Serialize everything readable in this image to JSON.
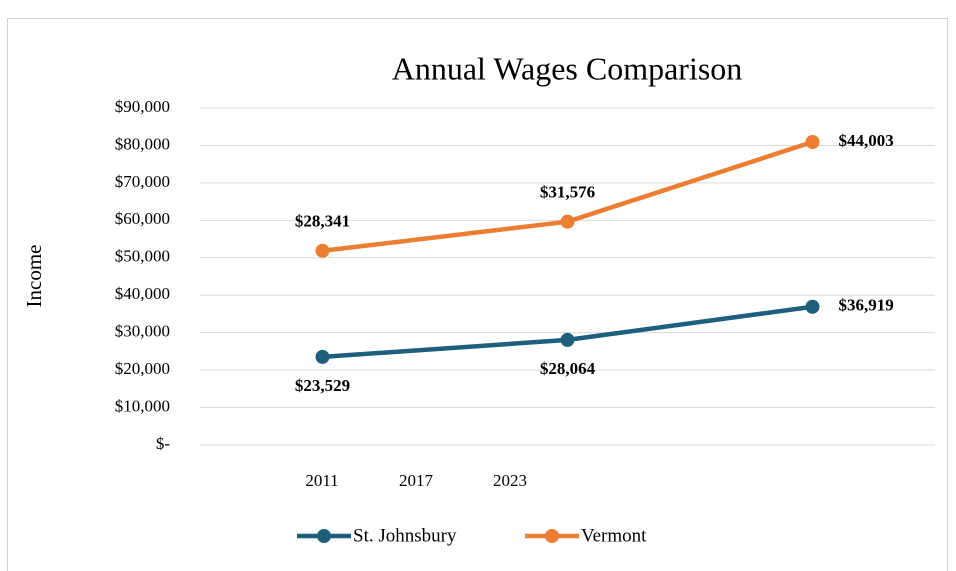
{
  "chart_data": {
    "type": "line",
    "stacked": true,
    "title": "Annual Wages Comparison",
    "y_label": "Income",
    "categories": [
      "2011",
      "2017",
      "2023"
    ],
    "series": [
      {
        "name": "St. Johnsbury",
        "color": "#1f5f7e",
        "values": [
          23529,
          28064,
          36919
        ],
        "value_labels": [
          "$23,529",
          "$28,064",
          "$36,919"
        ]
      },
      {
        "name": "Vermont",
        "color": "#ed7d31",
        "values": [
          28341,
          31576,
          44003
        ],
        "value_labels": [
          "$28,341",
          "$31,576",
          "$44,003"
        ]
      }
    ],
    "ylim": [
      0,
      90000
    ],
    "yticks": [
      {
        "value": 0,
        "label": "$-"
      },
      {
        "value": 10000,
        "label": "$10,000"
      },
      {
        "value": 20000,
        "label": "$20,000"
      },
      {
        "value": 30000,
        "label": "$30,000"
      },
      {
        "value": 40000,
        "label": "$40,000"
      },
      {
        "value": 50000,
        "label": "$50,000"
      },
      {
        "value": 60000,
        "label": "$60,000"
      },
      {
        "value": 70000,
        "label": "$70,000"
      },
      {
        "value": 80000,
        "label": "$80,000"
      },
      {
        "value": 90000,
        "label": "$90,000"
      }
    ],
    "grid": true,
    "legend": "bottom"
  }
}
